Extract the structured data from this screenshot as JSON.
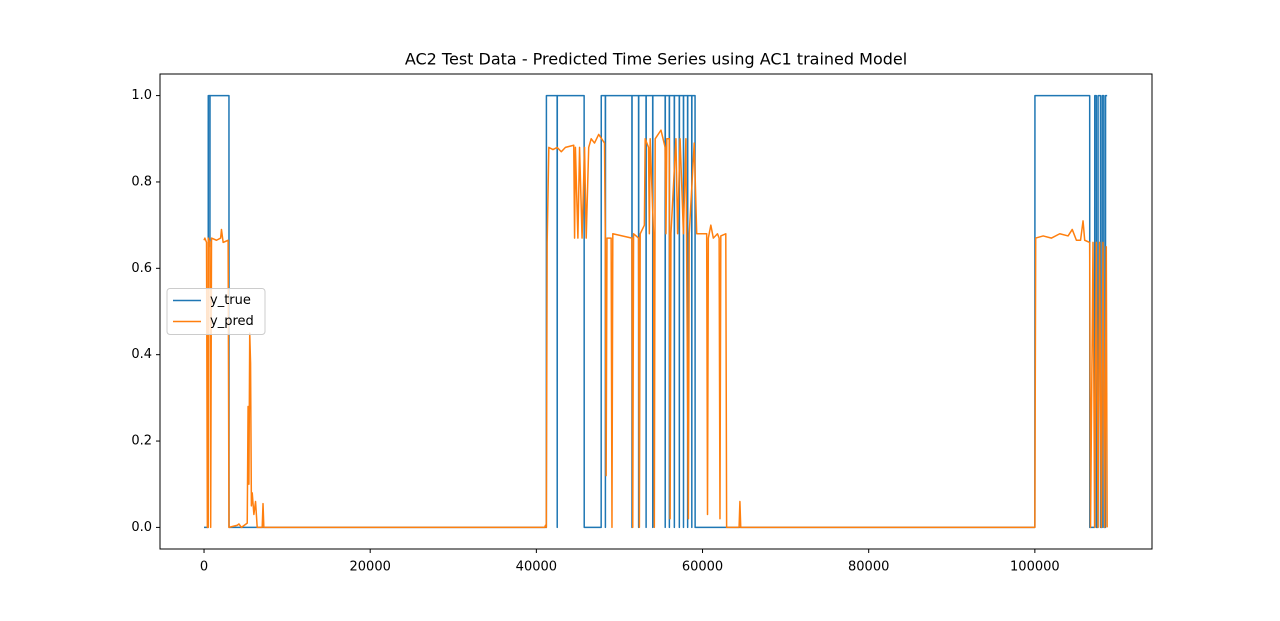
{
  "chart_data": {
    "type": "line",
    "title": "AC2 Test Data - Predicted Time Series using AC1 trained Model",
    "xlim": [
      -5300,
      114100
    ],
    "ylim": [
      -0.05,
      1.05
    ],
    "xticks": [
      0,
      20000,
      40000,
      60000,
      80000,
      100000
    ],
    "yticks": [
      {
        "value": 0,
        "label": "0.0"
      },
      {
        "value": 0.2,
        "label": "0.2"
      },
      {
        "value": 0.4,
        "label": "0.4"
      },
      {
        "value": 0.6,
        "label": "0.6"
      },
      {
        "value": 0.8,
        "label": "0.8"
      },
      {
        "value": 1,
        "label": "1.0"
      }
    ],
    "legend": "center left",
    "series": [
      {
        "name": "y_true",
        "color": "#1f77b4",
        "x": [
          0,
          500,
          510,
          700,
          710,
          720,
          3000,
          3010,
          41200,
          41210,
          42500,
          42510,
          42520,
          45750,
          45760,
          47800,
          47810,
          48300,
          48310,
          48320,
          51500,
          51510,
          51520,
          52300,
          52310,
          52320,
          53200,
          53210,
          53220,
          54000,
          54010,
          54020,
          55500,
          55510,
          55520,
          56000,
          56010,
          56020,
          56600,
          56610,
          56620,
          57200,
          57210,
          57220,
          57700,
          57710,
          57720,
          58200,
          58210,
          58220,
          58700,
          58710,
          58720,
          59100,
          59110,
          100000,
          100010,
          106600,
          106610,
          107200,
          107210,
          107400,
          107410,
          107600,
          107610,
          107900,
          107910,
          108100,
          108110,
          108300,
          108310,
          108500,
          108510,
          108700
        ],
        "values": [
          0,
          0,
          1,
          1,
          0.65,
          1,
          1,
          0,
          0,
          1,
          1,
          0,
          1,
          1,
          0,
          0,
          1,
          1,
          0,
          1,
          1,
          0,
          1,
          1,
          0,
          1,
          1,
          0,
          1,
          1,
          0,
          1,
          1,
          0,
          1,
          1,
          0,
          1,
          1,
          0,
          1,
          1,
          0,
          1,
          1,
          0,
          1,
          1,
          0,
          1,
          1,
          0,
          1,
          1,
          0,
          0,
          1,
          1,
          0,
          0,
          1,
          1,
          0,
          0,
          1,
          1,
          0,
          0,
          1,
          1,
          0,
          0,
          1,
          1
        ]
      },
      {
        "name": "y_pred",
        "color": "#ff7f0e",
        "x": [
          0,
          100,
          300,
          400,
          500,
          510,
          700,
          800,
          900,
          1500,
          2000,
          2100,
          2300,
          2900,
          3000,
          4000,
          4200,
          4500,
          5200,
          5300,
          5400,
          5500,
          5600,
          5700,
          5800,
          6000,
          6200,
          6400,
          7000,
          7100,
          7200,
          41000,
          41100,
          41200,
          41300,
          41500,
          42000,
          42500,
          43000,
          43500,
          44500,
          44600,
          44700,
          45000,
          45200,
          45500,
          45800,
          46000,
          46300,
          46600,
          47000,
          47500,
          48200,
          48300,
          48400,
          48500,
          49000,
          49100,
          49200,
          51500,
          51600,
          51700,
          52300,
          52400,
          52500,
          53000,
          53100,
          53500,
          53600,
          53700,
          54100,
          54200,
          54300,
          55000,
          55500,
          55600,
          55700,
          56000,
          56100,
          56200,
          56800,
          57000,
          57300,
          57700,
          58000,
          58300,
          58400,
          59000,
          59300,
          60500,
          60600,
          60700,
          61000,
          61300,
          61800,
          62000,
          62100,
          62200,
          62800,
          62900,
          64400,
          64500,
          64600,
          100000,
          100100,
          101000,
          102000,
          103000,
          104000,
          104500,
          105000,
          105500,
          105800,
          106000,
          106600,
          106700,
          107000,
          107200,
          107400,
          107600,
          107800,
          108000,
          108200,
          108400,
          108600,
          108700
        ],
        "values": [
          0.665,
          0.67,
          0.66,
          0,
          0,
          0.67,
          0.66,
          0,
          0.67,
          0.665,
          0.67,
          0.69,
          0.66,
          0.665,
          0,
          0.005,
          0.008,
          0,
          0.01,
          0.28,
          0.1,
          0.45,
          0.38,
          0.05,
          0.08,
          0.03,
          0.06,
          0,
          0,
          0.055,
          0,
          0,
          0.005,
          0,
          0.66,
          0.88,
          0.875,
          0.88,
          0.87,
          0.88,
          0.885,
          0.67,
          0.88,
          0.67,
          0.88,
          0.67,
          0.88,
          0.67,
          0.88,
          0.9,
          0.89,
          0.91,
          0.89,
          0.67,
          0.12,
          0.67,
          0.67,
          0,
          0.68,
          0.67,
          0,
          0.68,
          0.67,
          0,
          0.68,
          0.7,
          0.9,
          0.88,
          0.68,
          0.9,
          0.68,
          0,
          0.9,
          0.92,
          0.88,
          0.68,
          0.9,
          0.9,
          0.02,
          0.68,
          0.9,
          0.68,
          0.9,
          0.68,
          0.9,
          0.02,
          0.68,
          0.89,
          0.68,
          0.68,
          0.03,
          0.67,
          0.7,
          0.67,
          0.68,
          0.67,
          0.02,
          0.675,
          0.68,
          0,
          0,
          0.06,
          0,
          0,
          0.67,
          0.675,
          0.67,
          0.68,
          0.675,
          0.69,
          0.665,
          0.665,
          0.71,
          0.665,
          0.66,
          0,
          0.66,
          0,
          0.66,
          0,
          0.66,
          0,
          0.66,
          0,
          0.65,
          0
        ]
      }
    ]
  }
}
